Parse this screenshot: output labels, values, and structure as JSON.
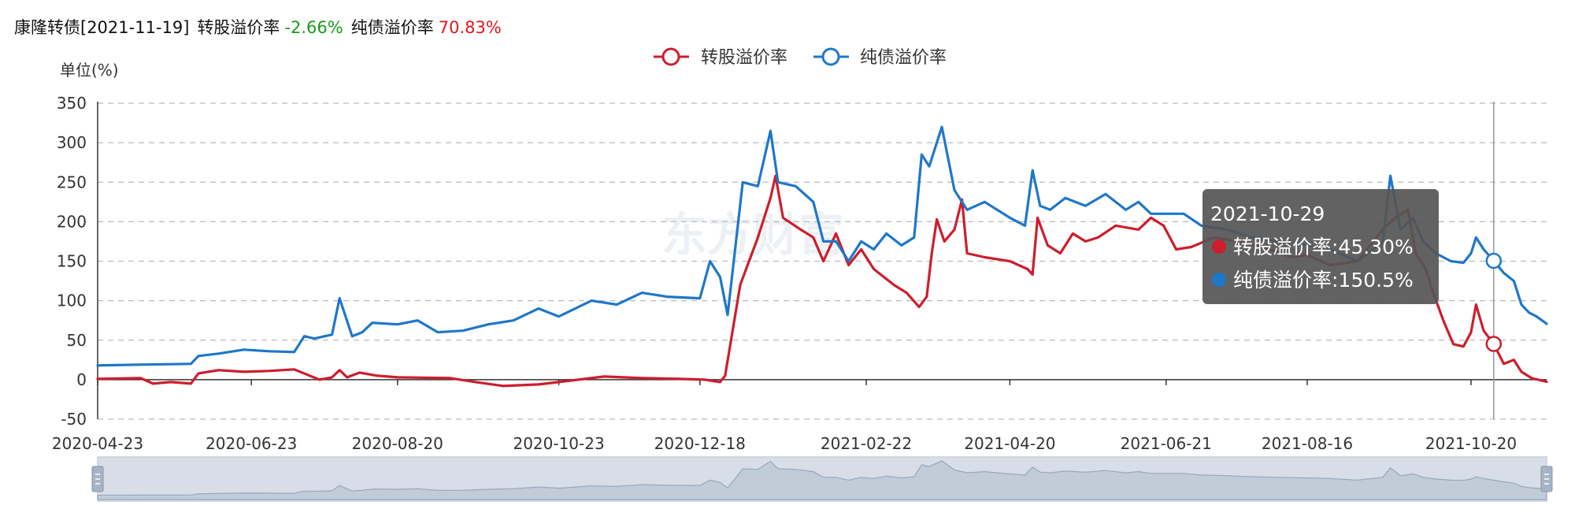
{
  "header": {
    "name": "康隆转债",
    "date": "[2021-11-19]",
    "conv_label": "转股溢价率",
    "conv_value": "-2.66%",
    "bond_label": "纯债溢价率",
    "bond_value": "70.83%"
  },
  "watermark": "东方财富",
  "colors": {
    "conv": "#cc1e2d",
    "bond": "#1f77c8",
    "negative": "#1a9b1a",
    "positive": "#e2161a",
    "grid": "#bbbbbb",
    "tooltip_bg": "#555555"
  },
  "tooltip": {
    "date": "2021-10-29",
    "conv_text": "转股溢价率:45.30%",
    "bond_text": "纯债溢价率:150.5%"
  },
  "chart_data": {
    "type": "line",
    "ylabel": "单位(%)",
    "ylim": [
      -50,
      350
    ],
    "yticks": [
      -50,
      0,
      50,
      100,
      150,
      200,
      250,
      300,
      350
    ],
    "xlim": [
      "2020-04-23",
      "2021-11-19"
    ],
    "xticks": [
      "2020-04-23",
      "2020-06-23",
      "2020-08-20",
      "2020-10-23",
      "2020-12-18",
      "2021-02-22",
      "2021-04-20",
      "2021-06-21",
      "2021-08-16",
      "2021-10-20"
    ],
    "grid": "horizontal-dashed",
    "legend_position": "top-center",
    "tooltip_date": "2021-10-29",
    "series": [
      {
        "name": "转股溢价率",
        "color": "#cc1e2d",
        "points": [
          [
            "2020-04-23",
            1
          ],
          [
            "2020-05-10",
            2
          ],
          [
            "2020-05-15",
            -5
          ],
          [
            "2020-05-22",
            -3
          ],
          [
            "2020-05-30",
            -5
          ],
          [
            "2020-06-02",
            8
          ],
          [
            "2020-06-10",
            12
          ],
          [
            "2020-06-20",
            10
          ],
          [
            "2020-06-30",
            11
          ],
          [
            "2020-07-10",
            13
          ],
          [
            "2020-07-20",
            0
          ],
          [
            "2020-07-25",
            3
          ],
          [
            "2020-07-28",
            12
          ],
          [
            "2020-07-31",
            3
          ],
          [
            "2020-08-05",
            9
          ],
          [
            "2020-08-12",
            5
          ],
          [
            "2020-08-20",
            3
          ],
          [
            "2020-09-10",
            2
          ],
          [
            "2020-09-20",
            -3
          ],
          [
            "2020-10-01",
            -8
          ],
          [
            "2020-10-15",
            -6
          ],
          [
            "2020-10-23",
            -3
          ],
          [
            "2020-11-10",
            4
          ],
          [
            "2020-11-25",
            2
          ],
          [
            "2020-12-10",
            1
          ],
          [
            "2020-12-20",
            0
          ],
          [
            "2020-12-26",
            -3
          ],
          [
            "2020-12-28",
            5
          ],
          [
            "2021-01-03",
            120
          ],
          [
            "2021-01-10",
            180
          ],
          [
            "2021-01-15",
            230
          ],
          [
            "2021-01-17",
            258
          ],
          [
            "2021-01-20",
            205
          ],
          [
            "2021-01-27",
            190
          ],
          [
            "2021-02-01",
            180
          ],
          [
            "2021-02-05",
            150
          ],
          [
            "2021-02-10",
            185
          ],
          [
            "2021-02-15",
            145
          ],
          [
            "2021-02-20",
            165
          ],
          [
            "2021-02-25",
            140
          ],
          [
            "2021-03-05",
            120
          ],
          [
            "2021-03-10",
            110
          ],
          [
            "2021-03-15",
            92
          ],
          [
            "2021-03-18",
            105
          ],
          [
            "2021-03-20",
            160
          ],
          [
            "2021-03-22",
            203
          ],
          [
            "2021-03-25",
            175
          ],
          [
            "2021-03-29",
            190
          ],
          [
            "2021-04-01",
            228
          ],
          [
            "2021-04-03",
            160
          ],
          [
            "2021-04-10",
            155
          ],
          [
            "2021-04-20",
            150
          ],
          [
            "2021-04-27",
            140
          ],
          [
            "2021-04-29",
            133
          ],
          [
            "2021-05-01",
            205
          ],
          [
            "2021-05-05",
            170
          ],
          [
            "2021-05-10",
            160
          ],
          [
            "2021-05-15",
            185
          ],
          [
            "2021-05-20",
            175
          ],
          [
            "2021-05-25",
            180
          ],
          [
            "2021-06-01",
            195
          ],
          [
            "2021-06-10",
            190
          ],
          [
            "2021-06-15",
            205
          ],
          [
            "2021-06-20",
            195
          ],
          [
            "2021-06-25",
            165
          ],
          [
            "2021-07-01",
            168
          ],
          [
            "2021-07-10",
            180
          ],
          [
            "2021-07-20",
            175
          ],
          [
            "2021-08-01",
            165
          ],
          [
            "2021-08-10",
            155
          ],
          [
            "2021-08-16",
            158
          ],
          [
            "2021-08-25",
            145
          ],
          [
            "2021-09-05",
            150
          ],
          [
            "2021-09-15",
            190
          ],
          [
            "2021-09-20",
            205
          ],
          [
            "2021-09-25",
            215
          ],
          [
            "2021-09-28",
            160
          ],
          [
            "2021-10-02",
            140
          ],
          [
            "2021-10-05",
            110
          ],
          [
            "2021-10-09",
            75
          ],
          [
            "2021-10-13",
            45
          ],
          [
            "2021-10-17",
            42
          ],
          [
            "2021-10-20",
            60
          ],
          [
            "2021-10-22",
            95
          ],
          [
            "2021-10-25",
            62
          ],
          [
            "2021-10-29",
            45.3
          ],
          [
            "2021-11-02",
            20
          ],
          [
            "2021-11-06",
            25
          ],
          [
            "2021-11-09",
            10
          ],
          [
            "2021-11-13",
            2
          ],
          [
            "2021-11-19",
            -2.66
          ]
        ]
      },
      {
        "name": "纯债溢价率",
        "color": "#1f77c8",
        "points": [
          [
            "2020-04-23",
            18
          ],
          [
            "2020-05-10",
            19
          ],
          [
            "2020-05-30",
            20
          ],
          [
            "2020-06-02",
            30
          ],
          [
            "2020-06-10",
            33
          ],
          [
            "2020-06-20",
            38
          ],
          [
            "2020-06-30",
            36
          ],
          [
            "2020-07-10",
            35
          ],
          [
            "2020-07-14",
            55
          ],
          [
            "2020-07-18",
            52
          ],
          [
            "2020-07-25",
            57
          ],
          [
            "2020-07-28",
            103
          ],
          [
            "2020-08-02",
            55
          ],
          [
            "2020-08-06",
            60
          ],
          [
            "2020-08-10",
            72
          ],
          [
            "2020-08-20",
            70
          ],
          [
            "2020-08-28",
            75
          ],
          [
            "2020-09-05",
            60
          ],
          [
            "2020-09-15",
            62
          ],
          [
            "2020-09-25",
            70
          ],
          [
            "2020-10-05",
            75
          ],
          [
            "2020-10-15",
            90
          ],
          [
            "2020-10-23",
            80
          ],
          [
            "2020-11-05",
            100
          ],
          [
            "2020-11-15",
            95
          ],
          [
            "2020-11-25",
            110
          ],
          [
            "2020-12-05",
            105
          ],
          [
            "2020-12-18",
            103
          ],
          [
            "2020-12-22",
            150
          ],
          [
            "2020-12-26",
            130
          ],
          [
            "2020-12-29",
            82
          ],
          [
            "2021-01-04",
            250
          ],
          [
            "2021-01-10",
            245
          ],
          [
            "2021-01-15",
            315
          ],
          [
            "2021-01-18",
            250
          ],
          [
            "2021-01-25",
            245
          ],
          [
            "2021-02-01",
            225
          ],
          [
            "2021-02-05",
            175
          ],
          [
            "2021-02-10",
            175
          ],
          [
            "2021-02-15",
            150
          ],
          [
            "2021-02-20",
            175
          ],
          [
            "2021-02-25",
            165
          ],
          [
            "2021-03-02",
            185
          ],
          [
            "2021-03-08",
            170
          ],
          [
            "2021-03-13",
            180
          ],
          [
            "2021-03-16",
            285
          ],
          [
            "2021-03-19",
            270
          ],
          [
            "2021-03-24",
            320
          ],
          [
            "2021-03-29",
            240
          ],
          [
            "2021-04-03",
            215
          ],
          [
            "2021-04-10",
            225
          ],
          [
            "2021-04-20",
            205
          ],
          [
            "2021-04-26",
            195
          ],
          [
            "2021-04-29",
            265
          ],
          [
            "2021-05-02",
            220
          ],
          [
            "2021-05-06",
            215
          ],
          [
            "2021-05-12",
            230
          ],
          [
            "2021-05-20",
            220
          ],
          [
            "2021-05-28",
            235
          ],
          [
            "2021-06-05",
            215
          ],
          [
            "2021-06-10",
            225
          ],
          [
            "2021-06-15",
            210
          ],
          [
            "2021-06-21",
            210
          ],
          [
            "2021-06-28",
            210
          ],
          [
            "2021-07-05",
            195
          ],
          [
            "2021-07-15",
            190
          ],
          [
            "2021-07-25",
            180
          ],
          [
            "2021-08-05",
            175
          ],
          [
            "2021-08-16",
            170
          ],
          [
            "2021-08-25",
            165
          ],
          [
            "2021-09-05",
            150
          ],
          [
            "2021-09-15",
            175
          ],
          [
            "2021-09-18",
            258
          ],
          [
            "2021-09-22",
            190
          ],
          [
            "2021-09-27",
            205
          ],
          [
            "2021-10-01",
            175
          ],
          [
            "2021-10-06",
            160
          ],
          [
            "2021-10-12",
            150
          ],
          [
            "2021-10-17",
            148
          ],
          [
            "2021-10-20",
            160
          ],
          [
            "2021-10-22",
            180
          ],
          [
            "2021-10-25",
            165
          ],
          [
            "2021-10-29",
            150.5
          ],
          [
            "2021-11-02",
            135
          ],
          [
            "2021-11-06",
            125
          ],
          [
            "2021-11-09",
            95
          ],
          [
            "2021-11-12",
            85
          ],
          [
            "2021-11-15",
            80
          ],
          [
            "2021-11-19",
            70.83
          ]
        ]
      }
    ]
  }
}
